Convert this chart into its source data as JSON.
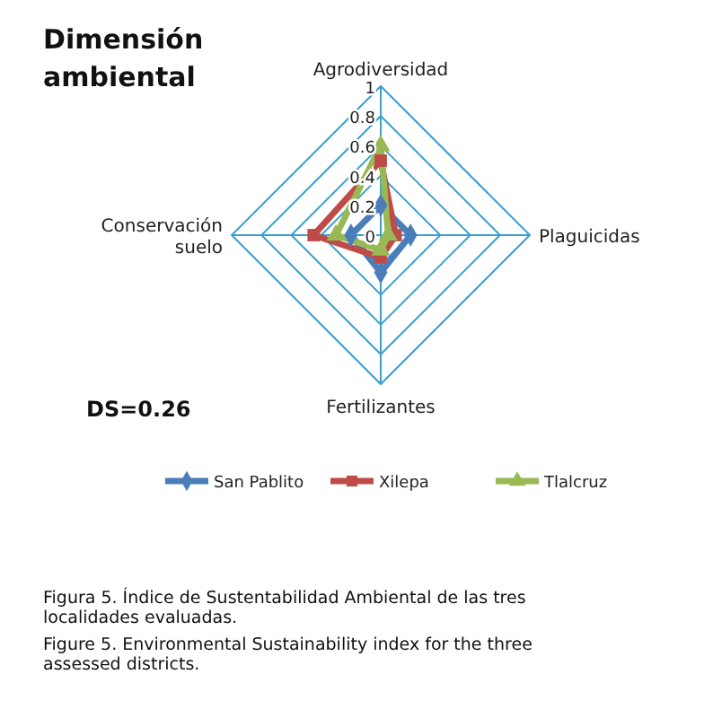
{
  "chart_data": {
    "type": "radar",
    "title": "Dimensión ambiental",
    "categories": [
      "Agrodiversidad",
      "Plaguicidas",
      "Fertilizantes",
      "Conservación suelo"
    ],
    "ylim": [
      0,
      1
    ],
    "yticks": [
      0,
      0.2,
      0.4,
      0.6,
      0.8,
      1
    ],
    "grid": true,
    "legend": "bottom",
    "line_style": "solid",
    "series": [
      {
        "name": "San Pablito",
        "color": "#4a7ebb",
        "marker": "diamond",
        "values": [
          0.2,
          0.2,
          0.25,
          0.2
        ]
      },
      {
        "name": "Xilepa",
        "color": "#be4b48",
        "marker": "square",
        "values": [
          0.5,
          0.1,
          0.15,
          0.45
        ]
      },
      {
        "name": "Tlalcruz",
        "color": "#98b954",
        "marker": "triangle",
        "values": [
          0.6,
          0.05,
          0.1,
          0.3
        ]
      }
    ],
    "annotations": [
      "DS=0.26",
      "Figura 5. Índice de Sustentabilidad Ambiental de las tres localidades evaluadas.",
      "Figure 5. Environmental Sustainability index for the three assessed districts."
    ]
  }
}
